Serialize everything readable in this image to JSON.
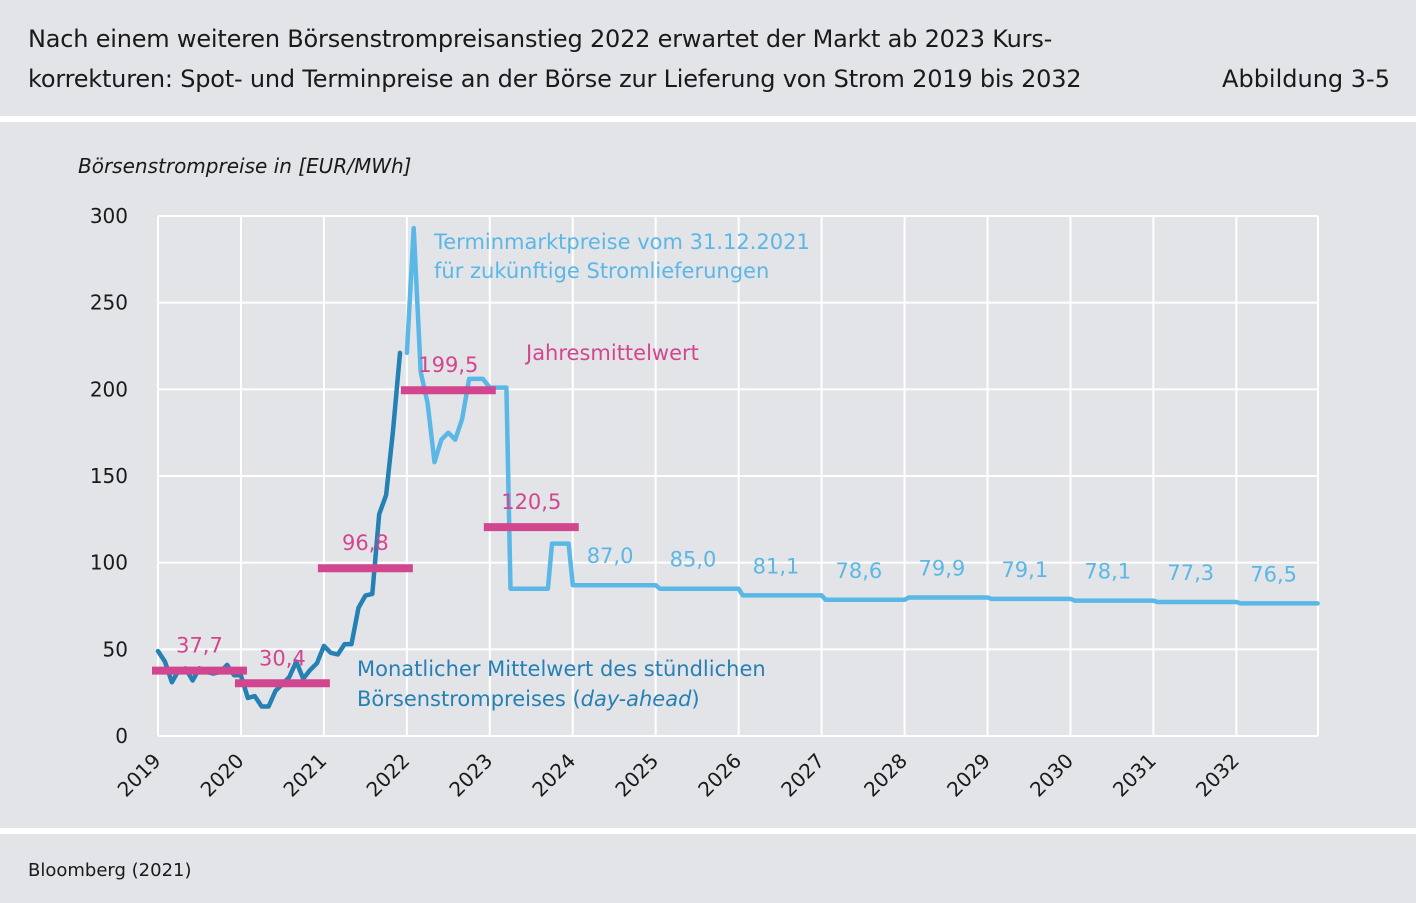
{
  "header": {
    "title_line1": "Nach einem weiteren Börsenstrompreisanstieg 2022 erwartet der Markt ab 2023 Kurs-",
    "title_line2": "korrekturen: Spot- und Terminpreise an der Börse zur Lieferung von Strom 2019 bis 2032",
    "figure_label": "Abbildung 3-5"
  },
  "footer": {
    "source": "Bloomberg (2021)"
  },
  "colors": {
    "panel": "#e3e4e8",
    "spot": "#2580b3",
    "forward": "#5bb7e5",
    "annual_mean": "#d2468f",
    "grid": "#ffffff",
    "text": "#1a1a1a"
  },
  "chart_data": {
    "type": "line",
    "title": "Nach einem weiteren Börsenstrompreisanstieg 2022 erwartet der Markt ab 2023 Kurskorrekturen: Spot- und Terminpreise an der Börse zur Lieferung von Strom 2019 bis 2032",
    "ylabel": "Börsenstrompreise in [EUR/MWh]",
    "ylim": [
      0,
      300
    ],
    "yticks": [
      0,
      50,
      100,
      150,
      200,
      250,
      300
    ],
    "xlim": [
      2019,
      2033
    ],
    "xticks": [
      2019,
      2020,
      2021,
      2022,
      2023,
      2024,
      2025,
      2026,
      2027,
      2028,
      2029,
      2030,
      2031,
      2032
    ],
    "grid": true,
    "series": [
      {
        "name": "Monatlicher Mittelwert des stündlichen Börsenstrompreises (day-ahead)",
        "color": "#2580b3",
        "points": [
          [
            2019.0,
            49
          ],
          [
            2019.083,
            43
          ],
          [
            2019.167,
            31
          ],
          [
            2019.25,
            38
          ],
          [
            2019.333,
            39
          ],
          [
            2019.417,
            32
          ],
          [
            2019.5,
            39
          ],
          [
            2019.583,
            37
          ],
          [
            2019.667,
            36
          ],
          [
            2019.75,
            37
          ],
          [
            2019.833,
            41
          ],
          [
            2019.917,
            35
          ],
          [
            2020.0,
            35
          ],
          [
            2020.083,
            22
          ],
          [
            2020.167,
            23
          ],
          [
            2020.25,
            17
          ],
          [
            2020.333,
            17
          ],
          [
            2020.417,
            26
          ],
          [
            2020.5,
            30
          ],
          [
            2020.583,
            34
          ],
          [
            2020.667,
            43
          ],
          [
            2020.75,
            33
          ],
          [
            2020.833,
            38
          ],
          [
            2020.917,
            42
          ],
          [
            2021.0,
            52
          ],
          [
            2021.083,
            48
          ],
          [
            2021.167,
            47
          ],
          [
            2021.25,
            53
          ],
          [
            2021.333,
            53
          ],
          [
            2021.417,
            74
          ],
          [
            2021.5,
            81
          ],
          [
            2021.583,
            82
          ],
          [
            2021.667,
            128
          ],
          [
            2021.75,
            139
          ],
          [
            2021.833,
            176
          ],
          [
            2021.917,
            221
          ]
        ]
      },
      {
        "name": "Terminmarktpreise vom 31.12.2021 für zukünftige Stromlieferungen",
        "color": "#5bb7e5",
        "points": [
          [
            2022.0,
            221
          ],
          [
            2022.083,
            293
          ],
          [
            2022.167,
            210
          ],
          [
            2022.25,
            192
          ],
          [
            2022.333,
            158
          ],
          [
            2022.417,
            171
          ],
          [
            2022.5,
            175
          ],
          [
            2022.583,
            171
          ],
          [
            2022.667,
            183
          ],
          [
            2022.75,
            206
          ],
          [
            2022.833,
            206
          ],
          [
            2022.917,
            206
          ],
          [
            2023.0,
            201
          ],
          [
            2023.2,
            201
          ],
          [
            2023.25,
            85
          ],
          [
            2023.7,
            85
          ],
          [
            2023.75,
            111
          ],
          [
            2023.95,
            111
          ],
          [
            2024.0,
            87
          ],
          [
            2025.0,
            87
          ],
          [
            2025.05,
            85
          ],
          [
            2026.0,
            85
          ],
          [
            2026.05,
            81.1
          ],
          [
            2027.0,
            81.1
          ],
          [
            2027.05,
            78.6
          ],
          [
            2028.0,
            78.6
          ],
          [
            2028.05,
            79.9
          ],
          [
            2029.0,
            79.9
          ],
          [
            2029.05,
            79.1
          ],
          [
            2030.0,
            79.1
          ],
          [
            2030.05,
            78.1
          ],
          [
            2031.0,
            78.1
          ],
          [
            2031.05,
            77.3
          ],
          [
            2032.0,
            77.3
          ],
          [
            2032.05,
            76.5
          ],
          [
            2032.98,
            76.5
          ]
        ]
      }
    ],
    "annual_means": [
      {
        "year": 2019,
        "value": 37.7,
        "label": "37,7"
      },
      {
        "year": 2020,
        "value": 30.4,
        "label": "30,4"
      },
      {
        "year": 2021,
        "value": 96.8,
        "label": "96,8"
      },
      {
        "year": 2022,
        "value": 199.5,
        "label": "199,5"
      },
      {
        "year": 2023,
        "value": 120.5,
        "label": "120,5"
      }
    ],
    "forward_year_labels": [
      {
        "year": 2024,
        "value": 87.0,
        "label": "87,0"
      },
      {
        "year": 2025,
        "value": 85.0,
        "label": "85,0"
      },
      {
        "year": 2026,
        "value": 81.1,
        "label": "81,1"
      },
      {
        "year": 2027,
        "value": 78.6,
        "label": "78,6"
      },
      {
        "year": 2028,
        "value": 79.9,
        "label": "79,9"
      },
      {
        "year": 2029,
        "value": 79.1,
        "label": "79,1"
      },
      {
        "year": 2030,
        "value": 78.1,
        "label": "78,1"
      },
      {
        "year": 2031,
        "value": 77.3,
        "label": "77,3"
      },
      {
        "year": 2032,
        "value": 76.5,
        "label": "76,5"
      }
    ],
    "annotations": {
      "forward_line1": "Terminmarktpreise vom 31.12.2021",
      "forward_line2": "für zukünftige Stromlieferungen",
      "mean_label": "Jahresmittelwert",
      "spot_line1": "Monatlicher Mittelwert des stündlichen",
      "spot_line2_prefix": "Börsenstrompreises (",
      "spot_line2_italic": "day-ahead",
      "spot_line2_suffix": ")"
    }
  }
}
